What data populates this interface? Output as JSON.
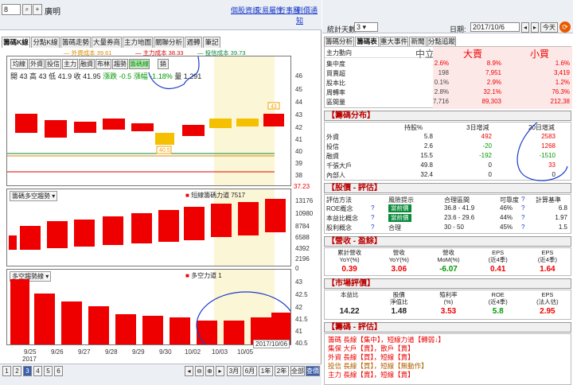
{
  "left": {
    "code": "8",
    "stock_name": "廣明",
    "links": [
      "個股資訊",
      "交易屬性",
      "行事曆",
      "到價通知"
    ],
    "tabs": [
      "籌碼K線",
      "分點K線",
      "籌碼走勢",
      "大量券商",
      "主力地圖",
      "關聯分析",
      "週轉",
      "筆記"
    ],
    "legend": [
      {
        "label": "外資成本 39.61",
        "color": "#e08a00"
      },
      {
        "label": "主力成本 38.33",
        "color": "#e00000"
      },
      {
        "label": "投信成本 39.73",
        "color": "#0a8a3a"
      }
    ],
    "period_buttons": [
      "均線",
      "外資",
      "投信",
      "主力",
      "融資",
      "布林",
      "趨勢",
      "籌碼線",
      "銷"
    ],
    "quote": {
      "open": "開 43",
      "high": "高 43",
      "low": "低 41.9",
      "close": "收 41.95",
      "change_pt": "漲跌 -0.5",
      "change_pct": "漲幅 -1.18%",
      "volume": "量 1,291"
    },
    "price_axis": [
      "46",
      "45",
      "44",
      "43",
      "42",
      "41",
      "40",
      "39",
      "38",
      "37.23"
    ],
    "price_labels": {
      "hi": "43",
      "lo": "40.5"
    },
    "panel2": {
      "title": "籌碼多空趨勢",
      "legend": "短線籌碼力道 7517",
      "axis": [
        "13176",
        "10980",
        "8784",
        "6588",
        "4392",
        "2196",
        "0"
      ]
    },
    "panel3": {
      "title": "多空趨勢線",
      "legend": "多空力道 1",
      "axis": [
        "43",
        "42.5",
        "42",
        "41.5",
        "41",
        "40.5"
      ]
    },
    "dates": [
      "9/25",
      "9/26",
      "9/27",
      "9/28",
      "9/29",
      "9/30",
      "10/02",
      "10/03",
      "10/05",
      "2017/10/06"
    ],
    "year_label": "2017",
    "pages": [
      "1",
      "2",
      "3",
      "4",
      "5",
      "6"
    ],
    "range_buttons": [
      "3月",
      "6月",
      "1年",
      "2年",
      "全部",
      "查價"
    ]
  },
  "right": {
    "stats_label": "統計天數",
    "stats_value": "3",
    "date_label": "日期",
    "date_value": "2017/10/6",
    "today": "今天",
    "tabs": [
      "籌碼分析",
      "籌碼表",
      "重大事件",
      "新聞",
      "分點追蹤"
    ],
    "summary": {
      "headers": [
        "主力動向",
        "中立",
        "大賣",
        "小買"
      ],
      "rows": [
        {
          "label": "集中度",
          "v": [
            "2.6%",
            "8.9%",
            "1.6%"
          ]
        },
        {
          "label": "買賣超",
          "v": [
            "198",
            "7,951",
            "3,419"
          ]
        },
        {
          "label": "股本比",
          "v": [
            "0.1%",
            "2.9%",
            "1.2%"
          ]
        },
        {
          "label": "周轉率",
          "v": [
            "2.8%",
            "32.1%",
            "76.3%"
          ]
        },
        {
          "label": "區間量",
          "v": [
            "7,716",
            "89,303",
            "212,38"
          ]
        }
      ]
    },
    "chip": {
      "title": "【籌碼分布】",
      "headers": [
        "",
        "持股%",
        "3日增減",
        "20日增減"
      ],
      "rows": [
        {
          "label": "外資",
          "v": [
            "5.8",
            "492",
            "2583"
          ]
        },
        {
          "label": "投信",
          "v": [
            "2.6",
            "-20",
            "1268"
          ]
        },
        {
          "label": "融資",
          "v": [
            "15.5",
            "-192",
            "-1510"
          ]
        },
        {
          "label": "千張大戶",
          "v": [
            "49.8",
            "0",
            "33"
          ]
        },
        {
          "label": "內部人",
          "v": [
            "32.4",
            "0",
            "0"
          ]
        }
      ]
    },
    "valuation": {
      "title": "【股價 - 評估】",
      "headers": [
        "評估方法",
        "",
        "風險提示",
        "合理區間",
        "可靠度",
        "?",
        "計算基準"
      ],
      "rows": [
        {
          "label": "ROE概念",
          "risk": "當前價",
          "range": "36.8 - 41.9",
          "rel": "46%",
          "base": "6.8"
        },
        {
          "label": "本益比概念",
          "risk": "當前價",
          "range": "23.6 - 29.6",
          "rel": "44%",
          "base": "1.97"
        },
        {
          "label": "股利概念",
          "risk": "合理",
          "range": "30 - 50",
          "rel": "45%",
          "base": "1.5"
        }
      ]
    },
    "revenue": {
      "title": "【營收 - 盈餘】",
      "headers": [
        "累計營收\nYoY(%)",
        "營收\nYoY(%)",
        "營收\nMoM(%)",
        "EPS\n(近4季)",
        "EPS\n(近4季)"
      ],
      "values": [
        "0.39",
        "3.06",
        "-6.07",
        "0.41",
        "1.64"
      ]
    },
    "market": {
      "title": "【市場評價】",
      "headers": [
        "本益比",
        "股價\n淨值比",
        "殖利率\n(%)",
        "ROE\n(近4季)",
        "EPS\n(法人估)"
      ],
      "values": [
        "14.22",
        "1.48",
        "3.53",
        "5.8",
        "2.95"
      ]
    },
    "chip_eval": {
      "title": "【籌碼 - 評估】",
      "lines": [
        "籌碼 長線【集中】，短線力道【轉弱↓】",
        "集保 大戶【賣】，散戶【賣】",
        "外資 長線【買】，短線【賣】",
        "投信 長線【買】，短線【無動作】",
        "主力 長線【賣】，短線【賣】"
      ]
    }
  }
}
